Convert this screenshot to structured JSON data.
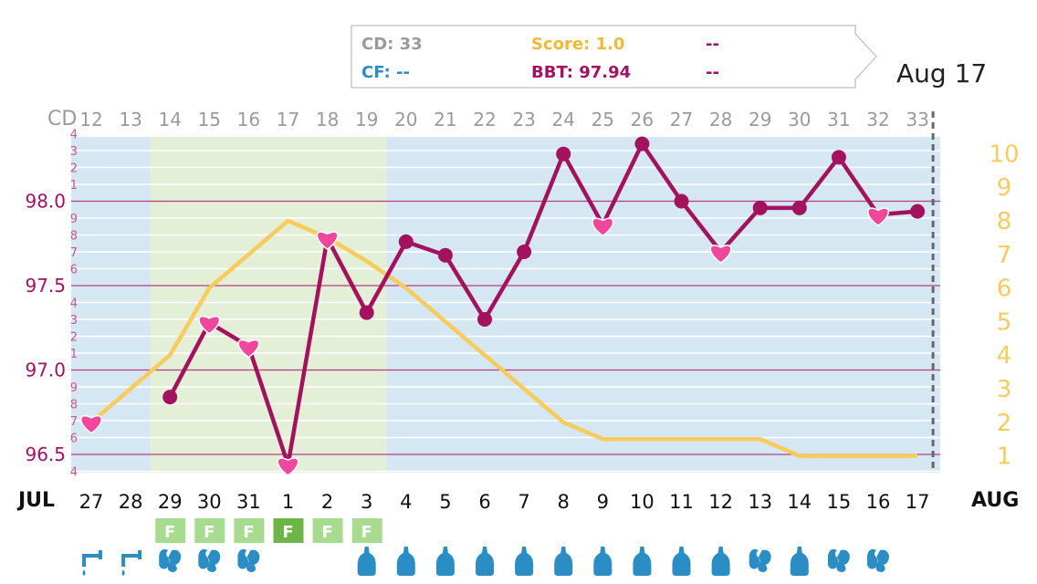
{
  "colors": {
    "bbt": "#A3125E",
    "score": "#F7CB5C",
    "heart": "#F0479E",
    "bg_blue": "#D5E7F3",
    "bg_green": "#E3EFD6",
    "grid_major": "#B53F7F",
    "cd_text": "#9a9a9a",
    "cf_text": "#2A8EC4",
    "fertile_box": "#A7DB8F",
    "fertile_box_dark": "#6EB548",
    "icon_blue": "#2A8EC4"
  },
  "tooltip": {
    "cd": "CD: 33",
    "cf": "CF: --",
    "score": "Score: 1.0",
    "bbt": "BBT: 97.94",
    "extra1": "--",
    "extra2": "--"
  },
  "selected_date": "Aug 17",
  "months": {
    "left": "JUL",
    "right": "AUG"
  },
  "cd_label": "CD",
  "chart_data": {
    "type": "line",
    "cycle_days": [
      12,
      13,
      14,
      15,
      16,
      17,
      18,
      19,
      20,
      21,
      22,
      23,
      24,
      25,
      26,
      27,
      28,
      29,
      30,
      31,
      32,
      33
    ],
    "dates": [
      "27",
      "28",
      "29",
      "30",
      "31",
      "1",
      "2",
      "3",
      "4",
      "5",
      "6",
      "7",
      "8",
      "9",
      "10",
      "11",
      "12",
      "13",
      "14",
      "15",
      "16",
      "17"
    ],
    "y_left": {
      "range": [
        96.4,
        98.4
      ],
      "major_ticks": [
        "96.5",
        "97.0",
        "97.5",
        "98.0"
      ],
      "minor_ticks": [
        "4",
        "6",
        "7",
        "8",
        "9",
        "1",
        "2",
        "3",
        "4",
        "6",
        "7",
        "8",
        "9",
        "1",
        "2",
        "3",
        "4",
        "6",
        "7",
        "8",
        "9",
        "1",
        "2",
        "3"
      ]
    },
    "y_right": {
      "range": [
        0.5,
        10.5
      ],
      "ticks": [
        "1",
        "2",
        "3",
        "4",
        "5",
        "6",
        "7",
        "8",
        "9",
        "10"
      ]
    },
    "series": [
      {
        "values": [
          null,
          null,
          96.84,
          97.28,
          97.14,
          96.44,
          97.78,
          97.34,
          97.76,
          97.68,
          97.3,
          97.7,
          98.28,
          97.86,
          98.34,
          98.0,
          97.7,
          97.96,
          97.96,
          98.26,
          97.92,
          97.94
        ]
      },
      {
        "values": [
          2,
          3,
          4,
          6,
          7,
          8,
          7.5,
          6.8,
          6,
          5,
          4,
          3,
          2,
          1.5,
          1.5,
          1.5,
          1.5,
          1.5,
          1,
          1,
          1,
          1
        ]
      }
    ],
    "hearts": [
      0,
      3,
      4,
      5,
      6,
      13,
      16,
      20
    ],
    "fertile_window": [
      2,
      7
    ],
    "fertile_labels": [
      {
        "index": 2,
        "label": "F",
        "style": "light"
      },
      {
        "index": 3,
        "label": "F",
        "style": "light"
      },
      {
        "index": 4,
        "label": "F",
        "style": "light"
      },
      {
        "index": 5,
        "label": "F",
        "style": "dark"
      },
      {
        "index": 6,
        "label": "F",
        "style": "light"
      },
      {
        "index": 7,
        "label": "F",
        "style": "light"
      }
    ],
    "symbols": [
      "tap-icon",
      "tap-icon",
      "cervical-fluid-icon",
      "cervical-fluid-icon",
      "cervical-fluid-icon",
      null,
      null,
      "drop-icon",
      "drop-icon",
      "drop-icon",
      "drop-icon",
      "drop-icon",
      "drop-icon",
      "drop-icon",
      "drop-icon",
      "drop-icon",
      "drop-icon",
      "cervical-fluid-icon",
      "drop-icon",
      "cervical-fluid-icon",
      "cervical-fluid-icon",
      null
    ],
    "today_index": 21
  }
}
